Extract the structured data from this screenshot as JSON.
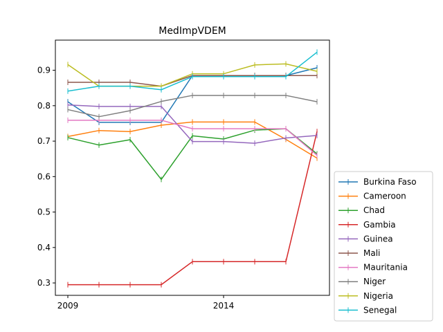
{
  "chart_data": {
    "type": "line",
    "title": "MedImpVDEM",
    "xlabel": "",
    "ylabel": "",
    "x": [
      2009,
      2010,
      2011,
      2012,
      2013,
      2014,
      2015,
      2016,
      2017
    ],
    "xticks": [
      2009,
      2014
    ],
    "xlim": [
      2008.6,
      2017.4
    ],
    "ylim": [
      0.265,
      0.985
    ],
    "yticks": [
      0.3,
      0.4,
      0.5,
      0.6,
      0.7,
      0.8,
      0.9
    ],
    "yticklabels": [
      "0.3",
      "0.4",
      "0.5",
      "0.6",
      "0.7",
      "0.8",
      "0.9"
    ],
    "grid": false,
    "legend_position": "outside-lower-right",
    "series": [
      {
        "name": "Burkina Faso",
        "color": "#1f77b4",
        "values": [
          0.811,
          0.753,
          0.753,
          0.753,
          0.885,
          0.885,
          0.885,
          0.885,
          0.907
        ]
      },
      {
        "name": "Cameroon",
        "color": "#ff7f0e",
        "values": [
          0.713,
          0.73,
          0.727,
          0.745,
          0.754,
          0.754,
          0.754,
          0.705,
          0.652
        ]
      },
      {
        "name": "Chad",
        "color": "#2ca02c",
        "values": [
          0.71,
          0.689,
          0.704,
          0.592,
          0.715,
          0.706,
          0.731,
          0.735,
          0.664
        ]
      },
      {
        "name": "Gambia",
        "color": "#d62728",
        "values": [
          0.295,
          0.295,
          0.295,
          0.295,
          0.36,
          0.36,
          0.36,
          0.36,
          0.727
        ]
      },
      {
        "name": "Guinea",
        "color": "#9467bd",
        "values": [
          0.802,
          0.798,
          0.798,
          0.798,
          0.699,
          0.699,
          0.694,
          0.709,
          0.716
        ]
      },
      {
        "name": "Mali",
        "color": "#8c564b",
        "values": [
          0.866,
          0.866,
          0.866,
          0.855,
          0.885,
          0.885,
          0.885,
          0.885,
          0.885
        ]
      },
      {
        "name": "Mauritania",
        "color": "#e377c2",
        "values": [
          0.759,
          0.759,
          0.759,
          0.759,
          0.735,
          0.735,
          0.735,
          0.735,
          0.66
        ]
      },
      {
        "name": "Niger",
        "color": "#7f7f7f",
        "values": [
          0.789,
          0.769,
          0.786,
          0.812,
          0.829,
          0.829,
          0.829,
          0.829,
          0.811
        ]
      },
      {
        "name": "Nigeria",
        "color": "#bcbd22",
        "values": [
          0.916,
          0.855,
          0.855,
          0.855,
          0.89,
          0.89,
          0.915,
          0.918,
          0.897
        ]
      },
      {
        "name": "Senegal",
        "color": "#17becf",
        "values": [
          0.841,
          0.855,
          0.855,
          0.845,
          0.882,
          0.882,
          0.882,
          0.882,
          0.951
        ]
      }
    ]
  }
}
